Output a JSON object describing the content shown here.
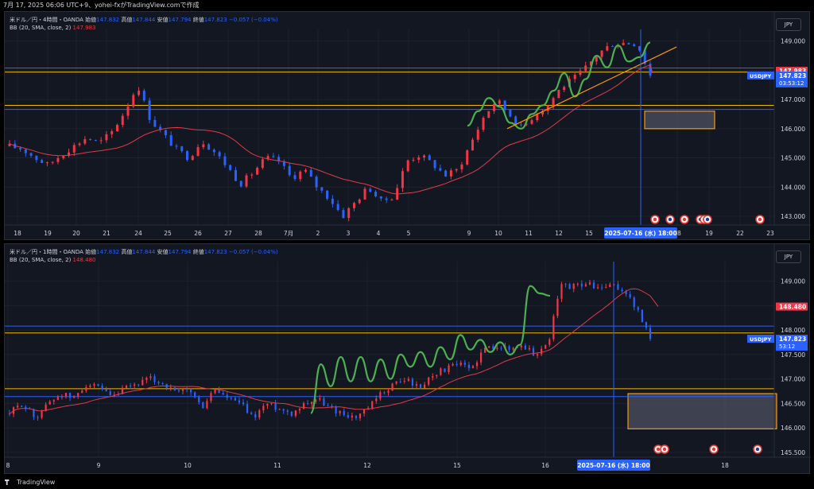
{
  "top_strip": "7月 17, 2025 06:06 UTC+9、yohei-fxがTradingView.comで作成",
  "footer_brand": "TradingView",
  "colors": {
    "background": "#131722",
    "up": "#f23645",
    "down": "#2962ff",
    "bb_basis": "#e03a4a",
    "support_line": "#f0b90b",
    "zone_border": "#ff9800",
    "zone_fill": "#4d5260",
    "wave": "#4caf50",
    "trendline": "#ff9800",
    "crosshair": "#2962ff"
  },
  "chart_data": [
    {
      "type": "candlestick",
      "symbol": "USDJPY",
      "header": {
        "name": "米ドル／円・4時間・OANDA",
        "o_label": "始値",
        "o": "147.832",
        "h_label": "高値",
        "h": "147.844",
        "l_label": "安値",
        "l": "147.794",
        "c_label": "終値",
        "c": "147.823",
        "chg": "−0.057 (−0.04%)"
      },
      "indicator": {
        "name": "BB (20, SMA, close, 2)",
        "value": "147.983"
      },
      "currency": "JPY",
      "ylim": [
        142.7,
        149.4
      ],
      "y_ticks": [
        "149.000",
        "148.000",
        "147.000",
        "146.000",
        "145.000",
        "144.000",
        "143.000"
      ],
      "x_ticks": [
        "18",
        "19",
        "20",
        "21",
        "24",
        "25",
        "26",
        "27",
        "28",
        "7月",
        "2",
        "3",
        "4",
        "5",
        "9",
        "10",
        "11",
        "12",
        "15",
        "18",
        "19",
        "22",
        "23"
      ],
      "crosshair_label": "2025-07-16 (水)  18:00",
      "price_labels": {
        "bb": "147.983",
        "symbol": "USDJPY",
        "last": "147.823",
        "countdown": "03:53:12"
      },
      "horizontal_lines": [
        148.08,
        147.94,
        146.8,
        146.66
      ],
      "zone": [
        146.0,
        146.6
      ],
      "close_path": [
        145.4,
        145.3,
        145.0,
        144.75,
        145.1,
        145.4,
        145.7,
        145.5,
        145.9,
        146.6,
        147.5,
        146.3,
        145.8,
        145.3,
        145.0,
        145.6,
        145.2,
        144.7,
        144.1,
        144.5,
        145.0,
        144.9,
        144.3,
        144.6,
        144.0,
        143.6,
        143.0,
        143.5,
        144.0,
        143.5,
        143.7,
        144.9,
        145.1,
        144.8,
        144.4,
        144.6,
        145.5,
        146.4,
        147.0,
        146.5,
        146.0,
        146.5,
        146.8,
        147.4,
        147.7,
        148.1,
        148.6,
        148.9,
        148.95,
        148.9,
        147.82
      ],
      "wave_path": [
        146.1,
        146.6,
        147.05,
        146.75,
        146.2,
        146.0,
        146.5,
        146.8,
        147.3,
        147.9,
        147.1,
        147.7,
        148.5,
        148.1,
        148.85,
        148.3,
        148.45,
        148.95
      ],
      "trendline": [
        [
          146.0,
          40
        ],
        [
          148.8,
          51
        ]
      ],
      "event_icon_count": 7
    },
    {
      "type": "candlestick",
      "symbol": "USDJPY",
      "header": {
        "name": "米ドル／円・1時間・OANDA",
        "o_label": "始値",
        "o": "147.832",
        "h_label": "高値",
        "h": "147.844",
        "l_label": "安値",
        "l": "147.794",
        "c_label": "終値",
        "c": "147.823",
        "chg": "−0.057 (−0.04%)"
      },
      "indicator": {
        "name": "BB (20, SMA, close, 2)",
        "value": "148.480"
      },
      "currency": "JPY",
      "ylim": [
        145.4,
        149.4
      ],
      "y_ticks": [
        "149.000",
        "148.500",
        "148.000",
        "147.500",
        "147.000",
        "146.500",
        "146.000",
        "145.500"
      ],
      "x_ticks": [
        "8",
        "9",
        "10",
        "11",
        "12",
        "15",
        "16",
        "18"
      ],
      "crosshair_label": "2025-07-16 (水)  18:00",
      "price_labels": {
        "bb": "148.480",
        "symbol": "USDJPY",
        "last": "147.823",
        "countdown": "53:12"
      },
      "horizontal_lines": [
        148.08,
        147.94,
        146.8,
        146.64
      ],
      "zone": [
        145.98,
        146.7
      ],
      "close_path": [
        146.3,
        146.5,
        146.2,
        146.5,
        146.7,
        146.6,
        146.9,
        146.8,
        146.6,
        146.8,
        146.9,
        147.0,
        146.9,
        146.7,
        146.8,
        146.4,
        146.8,
        146.6,
        146.5,
        146.2,
        146.5,
        146.4,
        146.3,
        146.5,
        146.6,
        146.4,
        146.3,
        146.2,
        146.4,
        146.7,
        146.9,
        147.0,
        146.8,
        147.1,
        147.2,
        147.3,
        147.2,
        147.6,
        147.7,
        147.6,
        147.7,
        147.5,
        147.7,
        148.9,
        148.9,
        148.95,
        148.85,
        148.9,
        148.8,
        148.4,
        147.82
      ],
      "wave_path": [
        146.3,
        147.3,
        146.85,
        147.45,
        146.95,
        147.45,
        146.95,
        147.4,
        147.0,
        147.5,
        147.25,
        147.55,
        147.25,
        147.65,
        147.4,
        147.9,
        147.6,
        147.8,
        147.55,
        147.75,
        147.5,
        147.7,
        148.9,
        148.75,
        148.7
      ],
      "event_icon_count": 5
    }
  ]
}
